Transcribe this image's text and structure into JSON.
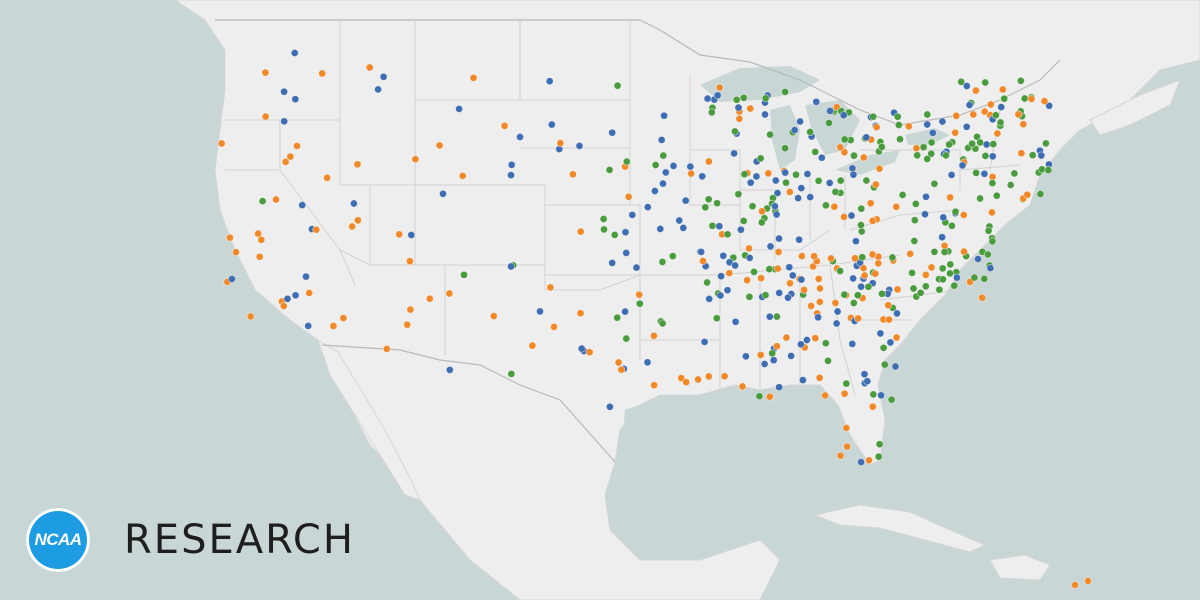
{
  "brand": {
    "logo_text": "NCAA",
    "wordmark": "RESEARCH",
    "logo_color": "#1d9be3"
  },
  "colors": {
    "water": "#c9d6d6",
    "land": "#eeeeee",
    "series_blue": "#3f6db2",
    "series_orange": "#f0892a",
    "series_green": "#4a9a3e"
  },
  "map_layers": [
    "base-land",
    "state-borders",
    "school-markers"
  ]
}
